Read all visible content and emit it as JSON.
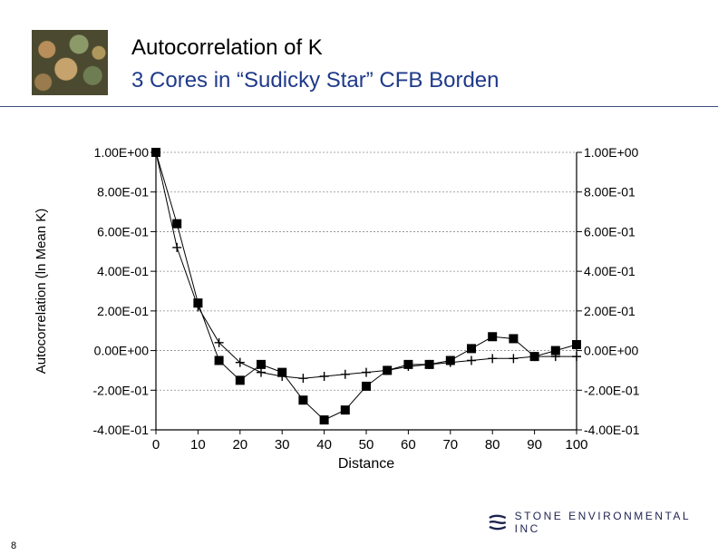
{
  "slide": {
    "title": "Autocorrelation of K",
    "subtitle": "3 Cores in “Sudicky Star” CFB Borden",
    "page_number": "8",
    "logo_text": "STONE ENVIRONMENTAL INC",
    "colors": {
      "subtitle": "#1f3a8a",
      "rule": "#3b4f7a",
      "logo": "#1d2350"
    }
  },
  "chart_data": {
    "type": "line",
    "xlabel": "Distance",
    "ylabel": "Autocorrelation (ln Mean K)",
    "xlim": [
      0,
      100
    ],
    "ylim": [
      -0.4,
      1.0
    ],
    "x_ticks": [
      "0",
      "10",
      "20",
      "30",
      "40",
      "50",
      "60",
      "70",
      "80",
      "90",
      "100"
    ],
    "y_ticks_left": [
      "1.00E+00",
      "8.00E-01",
      "6.00E-01",
      "4.00E-01",
      "2.00E-01",
      "0.00E+00",
      "-2.00E-01",
      "-4.00E-01"
    ],
    "y_ticks_right": [
      "1.00E+00",
      "8.00E-01",
      "6.00E-01",
      "4.00E-01",
      "2.00E-01",
      "0.00E+00",
      "-2.00E-01",
      "-4.00E-01"
    ],
    "y_tick_values": [
      1.0,
      0.8,
      0.6,
      0.4,
      0.2,
      0.0,
      -0.2,
      -0.4
    ],
    "x_tick_values": [
      0,
      10,
      20,
      30,
      40,
      50,
      60,
      70,
      80,
      90,
      100
    ],
    "grid": true,
    "series": [
      {
        "marker": "square",
        "x": [
          0,
          5,
          10,
          15,
          20,
          25,
          30,
          35,
          40,
          45,
          50,
          55,
          60,
          65,
          70,
          75,
          80,
          85,
          90,
          95,
          100
        ],
        "y": [
          1.0,
          0.64,
          0.24,
          -0.05,
          -0.15,
          -0.07,
          -0.11,
          -0.25,
          -0.35,
          -0.3,
          -0.18,
          -0.1,
          -0.07,
          -0.07,
          -0.05,
          0.01,
          0.07,
          0.06,
          -0.03,
          0.0,
          0.03
        ]
      },
      {
        "marker": "plus",
        "x": [
          0,
          5,
          10,
          15,
          20,
          25,
          30,
          35,
          40,
          45,
          50,
          55,
          60,
          65,
          70,
          75,
          80,
          85,
          90,
          95,
          100
        ],
        "y": [
          1.0,
          0.52,
          0.22,
          0.04,
          -0.06,
          -0.11,
          -0.13,
          -0.14,
          -0.13,
          -0.12,
          -0.11,
          -0.1,
          -0.08,
          -0.07,
          -0.06,
          -0.05,
          -0.04,
          -0.04,
          -0.03,
          -0.03,
          -0.03
        ]
      }
    ]
  }
}
